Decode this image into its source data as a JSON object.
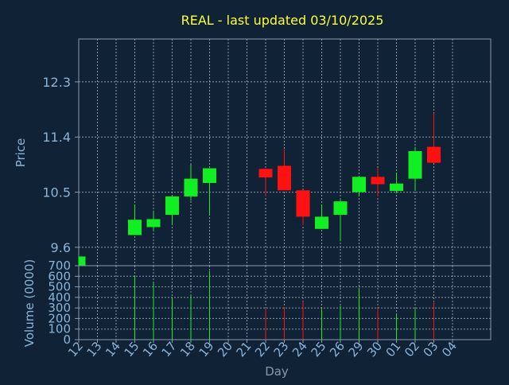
{
  "chart_data": {
    "type": "candlestick",
    "title": "REAL - last updated 03/10/2025",
    "xlabel": "Day",
    "ylabel_price": "Price",
    "ylabel_volume": "Volume (0000)",
    "price_ylim": [
      9.3,
      13.0
    ],
    "price_ticks": [
      "9.6",
      "10.5",
      "11.4",
      "12.3"
    ],
    "volume_ylim": [
      0,
      700
    ],
    "volume_ticks": [
      "0",
      "100",
      "200",
      "300",
      "400",
      "500",
      "600",
      "700"
    ],
    "x_ticks": [
      "12",
      "13",
      "14",
      "15",
      "16",
      "17",
      "18",
      "19",
      "20",
      "21",
      "22",
      "23",
      "24",
      "25",
      "26",
      "29",
      "30",
      "01",
      "02",
      "03",
      "04"
    ],
    "grid": true,
    "colors": {
      "background": "#0f2236",
      "axis": "#8899aa",
      "grid": "#c8ccd0",
      "title": "#ffff33",
      "label": "#8ab4d8",
      "up": "#11ee22",
      "down": "#ff1111"
    },
    "candles": [
      {
        "day": "12",
        "open": 9.3,
        "close": 9.45,
        "high": 9.45,
        "low": 9.3,
        "volume": 0
      },
      {
        "day": "15",
        "open": 9.8,
        "close": 10.05,
        "high": 10.3,
        "low": 9.8,
        "volume": 600
      },
      {
        "day": "16",
        "open": 9.93,
        "close": 10.06,
        "high": 10.2,
        "low": 9.86,
        "volume": 540
      },
      {
        "day": "17",
        "open": 10.13,
        "close": 10.43,
        "high": 10.43,
        "low": 9.98,
        "volume": 395
      },
      {
        "day": "18",
        "open": 10.43,
        "close": 10.72,
        "high": 10.95,
        "low": 10.36,
        "volume": 420
      },
      {
        "day": "19",
        "open": 10.65,
        "close": 10.89,
        "high": 10.89,
        "low": 10.13,
        "volume": 650
      },
      {
        "day": "22",
        "open": 10.88,
        "close": 10.74,
        "high": 10.88,
        "low": 10.43,
        "volume": 300
      },
      {
        "day": "23",
        "open": 10.93,
        "close": 10.53,
        "high": 11.2,
        "low": 10.53,
        "volume": 310
      },
      {
        "day": "24",
        "open": 10.53,
        "close": 10.1,
        "high": 10.53,
        "low": 9.96,
        "volume": 360
      },
      {
        "day": "25",
        "open": 9.9,
        "close": 10.1,
        "high": 10.3,
        "low": 9.9,
        "volume": 290
      },
      {
        "day": "26",
        "open": 10.13,
        "close": 10.35,
        "high": 10.38,
        "low": 9.7,
        "volume": 320
      },
      {
        "day": "29",
        "open": 10.5,
        "close": 10.75,
        "high": 10.75,
        "low": 10.43,
        "volume": 490
      },
      {
        "day": "30",
        "open": 10.75,
        "close": 10.63,
        "high": 10.89,
        "low": 10.43,
        "volume": 300
      },
      {
        "day": "01",
        "open": 10.52,
        "close": 10.64,
        "high": 10.82,
        "low": 10.48,
        "volume": 245
      },
      {
        "day": "02",
        "open": 10.72,
        "close": 11.17,
        "high": 11.24,
        "low": 10.52,
        "volume": 300
      },
      {
        "day": "03",
        "open": 11.24,
        "close": 10.98,
        "high": 11.79,
        "low": 10.98,
        "volume": 360
      }
    ]
  }
}
